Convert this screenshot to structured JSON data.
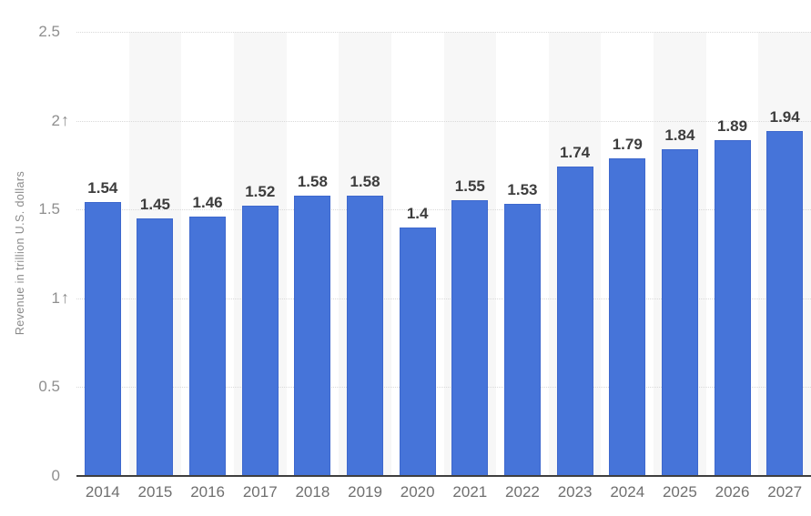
{
  "chart_data": {
    "type": "bar",
    "title": "",
    "xlabel": "",
    "ylabel": "Revenue in trillion U.S. dollars",
    "categories": [
      "2014",
      "2015",
      "2016",
      "2017",
      "2018",
      "2019",
      "2020",
      "2021",
      "2022",
      "2023",
      "2024",
      "2025",
      "2026",
      "2027"
    ],
    "values": [
      1.54,
      1.45,
      1.46,
      1.52,
      1.58,
      1.58,
      1.4,
      1.55,
      1.53,
      1.74,
      1.79,
      1.84,
      1.89,
      1.94
    ],
    "value_labels": [
      "1.54",
      "1.45",
      "1.46",
      "1.52",
      "1.58",
      "1.58",
      "1.4",
      "1.55",
      "1.53",
      "1.74",
      "1.79",
      "1.84",
      "1.89",
      "1.94"
    ],
    "ylim": [
      0,
      2.5
    ],
    "yticks": [
      {
        "value": 0,
        "label": "0",
        "arrow": false
      },
      {
        "value": 0.5,
        "label": "0.5",
        "arrow": false
      },
      {
        "value": 1,
        "label": "1",
        "arrow": true
      },
      {
        "value": 1.5,
        "label": "1.5",
        "arrow": false
      },
      {
        "value": 2,
        "label": "2",
        "arrow": true
      },
      {
        "value": 2.5,
        "label": "2.5",
        "arrow": false
      }
    ],
    "grid": "horizontal-dotted",
    "legend": "none",
    "background_stripes": "alternating vertical bands on odd columns",
    "icons": {
      "up_arrow": "↑"
    },
    "colors": {
      "bar": "#4674d9",
      "bar_border": "#3e68cd",
      "stripe": "#f7f7f7",
      "gridline": "#d9d9d9",
      "axis_line": "#3f3f3f",
      "value_label": "#3d3d3d",
      "y_tick_label": "#8f8f8f",
      "x_tick_label": "#6f6f6f",
      "y_axis_title": "#8a8a8a",
      "background": "#ffffff"
    }
  }
}
